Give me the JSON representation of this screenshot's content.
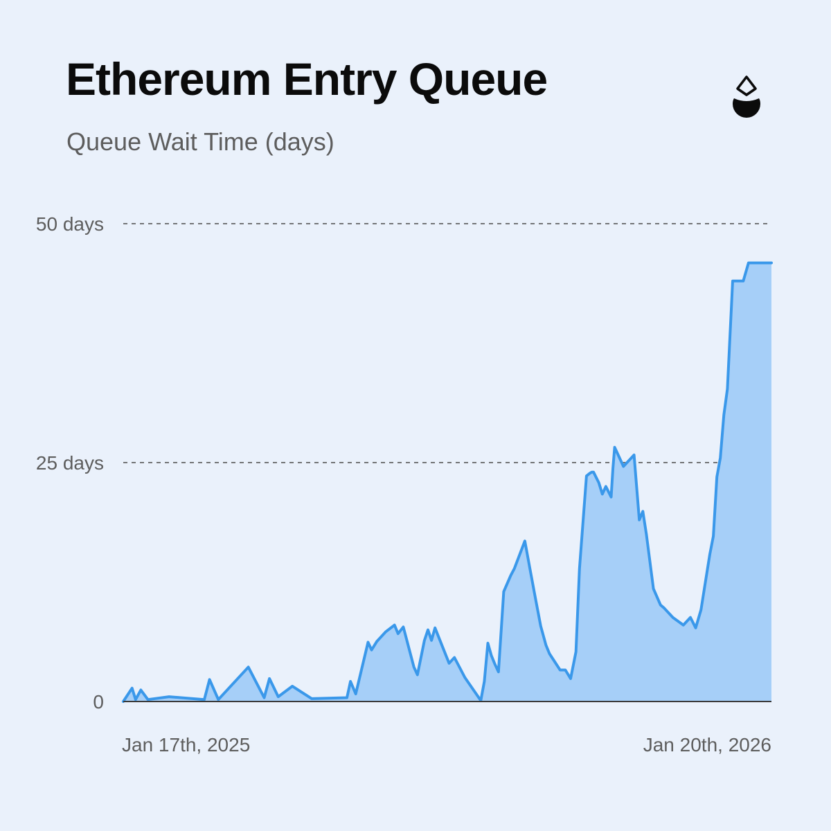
{
  "header": {
    "title": "Ethereum Entry Queue",
    "subtitle": "Queue Wait Time (days)"
  },
  "logo": {
    "icon": "droplet-ethereum-icon"
  },
  "colors": {
    "line": "#3a98ea",
    "area": "#a6cff8",
    "grid": "#4a4a4a",
    "axis_text": "#5d5d5d",
    "background": "#eaf1fb"
  },
  "chart_data": {
    "type": "area",
    "title": "Ethereum Entry Queue",
    "subtitle": "Queue Wait Time (days)",
    "x_start_label": "Jan 17th, 2025",
    "x_end_label": "Jan 20th, 2026",
    "x_range": [
      "2025-01-17",
      "2026-01-20"
    ],
    "ylim": [
      0,
      50
    ],
    "y_ticks": [
      {
        "value": 0,
        "label": "0"
      },
      {
        "value": 25,
        "label": "25 days"
      },
      {
        "value": 50,
        "label": "50 days"
      }
    ],
    "grid": "dashed horizontal at 25 and 50",
    "legend": "none",
    "series": [
      {
        "x": [
          "2025-01-17",
          "2025-01-22",
          "2025-01-24",
          "2025-01-27",
          "2025-01-31",
          "2025-02-12",
          "2025-03-04",
          "2025-03-07",
          "2025-03-12",
          "2025-03-29",
          "2025-04-07",
          "2025-04-10",
          "2025-04-15",
          "2025-04-23",
          "2025-05-04",
          "2025-05-24",
          "2025-05-26",
          "2025-05-29",
          "2025-06-05",
          "2025-06-07",
          "2025-06-10",
          "2025-06-15",
          "2025-06-20",
          "2025-06-22",
          "2025-06-25",
          "2025-07-01",
          "2025-07-03",
          "2025-07-07",
          "2025-07-09",
          "2025-07-11",
          "2025-07-13",
          "2025-07-21",
          "2025-07-24",
          "2025-07-30",
          "2025-08-08",
          "2025-08-10",
          "2025-08-12",
          "2025-08-14",
          "2025-08-16",
          "2025-08-18",
          "2025-08-21",
          "2025-08-25",
          "2025-08-27",
          "2025-09-02",
          "2025-09-05",
          "2025-09-08",
          "2025-09-11",
          "2025-09-14",
          "2025-09-16",
          "2025-09-22",
          "2025-09-25",
          "2025-09-28",
          "2025-10-01",
          "2025-10-03",
          "2025-10-07",
          "2025-10-09",
          "2025-10-10",
          "2025-10-11",
          "2025-10-14",
          "2025-10-16",
          "2025-10-18",
          "2025-10-21",
          "2025-10-22",
          "2025-10-23",
          "2025-10-25",
          "2025-10-28",
          "2025-11-03",
          "2025-11-06",
          "2025-11-08",
          "2025-11-10",
          "2025-11-14",
          "2025-11-18",
          "2025-11-20",
          "2025-11-25",
          "2025-12-01",
          "2025-12-05",
          "2025-12-08",
          "2025-12-11",
          "2025-12-13",
          "2025-12-16",
          "2025-12-18",
          "2025-12-20",
          "2025-12-22",
          "2025-12-24",
          "2025-12-26",
          "2025-12-29",
          "2026-01-02",
          "2026-01-04",
          "2026-01-07",
          "2026-01-09",
          "2026-01-10",
          "2026-01-12",
          "2026-01-14",
          "2026-01-15",
          "2026-01-17",
          "2026-01-19",
          "2026-01-20"
        ],
        "y": [
          0.0,
          1.4,
          0.2,
          1.2,
          0.2,
          0.5,
          0.2,
          2.3,
          0.2,
          3.6,
          0.4,
          2.4,
          0.5,
          1.6,
          0.3,
          0.4,
          2.1,
          0.8,
          6.2,
          5.4,
          6.3,
          7.3,
          8.0,
          7.1,
          7.8,
          3.6,
          2.8,
          6.4,
          7.5,
          6.4,
          7.7,
          4.0,
          4.6,
          2.5,
          0.1,
          2.1,
          6.1,
          4.8,
          3.9,
          3.1,
          11.5,
          13.2,
          13.9,
          16.8,
          13.8,
          10.8,
          7.9,
          5.9,
          5.0,
          3.3,
          3.3,
          2.4,
          5.2,
          13.9,
          23.6,
          23.9,
          24.0,
          24.0,
          22.9,
          21.7,
          22.5,
          21.4,
          24.4,
          26.6,
          25.8,
          24.6,
          25.8,
          19.0,
          19.9,
          17.5,
          11.8,
          10.1,
          9.8,
          8.8,
          8.0,
          8.8,
          7.7,
          9.6,
          11.9,
          15.4,
          17.3,
          23.5,
          25.5,
          30.0,
          32.7,
          44.0,
          44.0,
          44.0,
          45.9,
          45.9,
          45.9,
          45.9,
          45.9,
          45.9,
          45.9,
          45.9,
          45.9
        ]
      }
    ]
  }
}
